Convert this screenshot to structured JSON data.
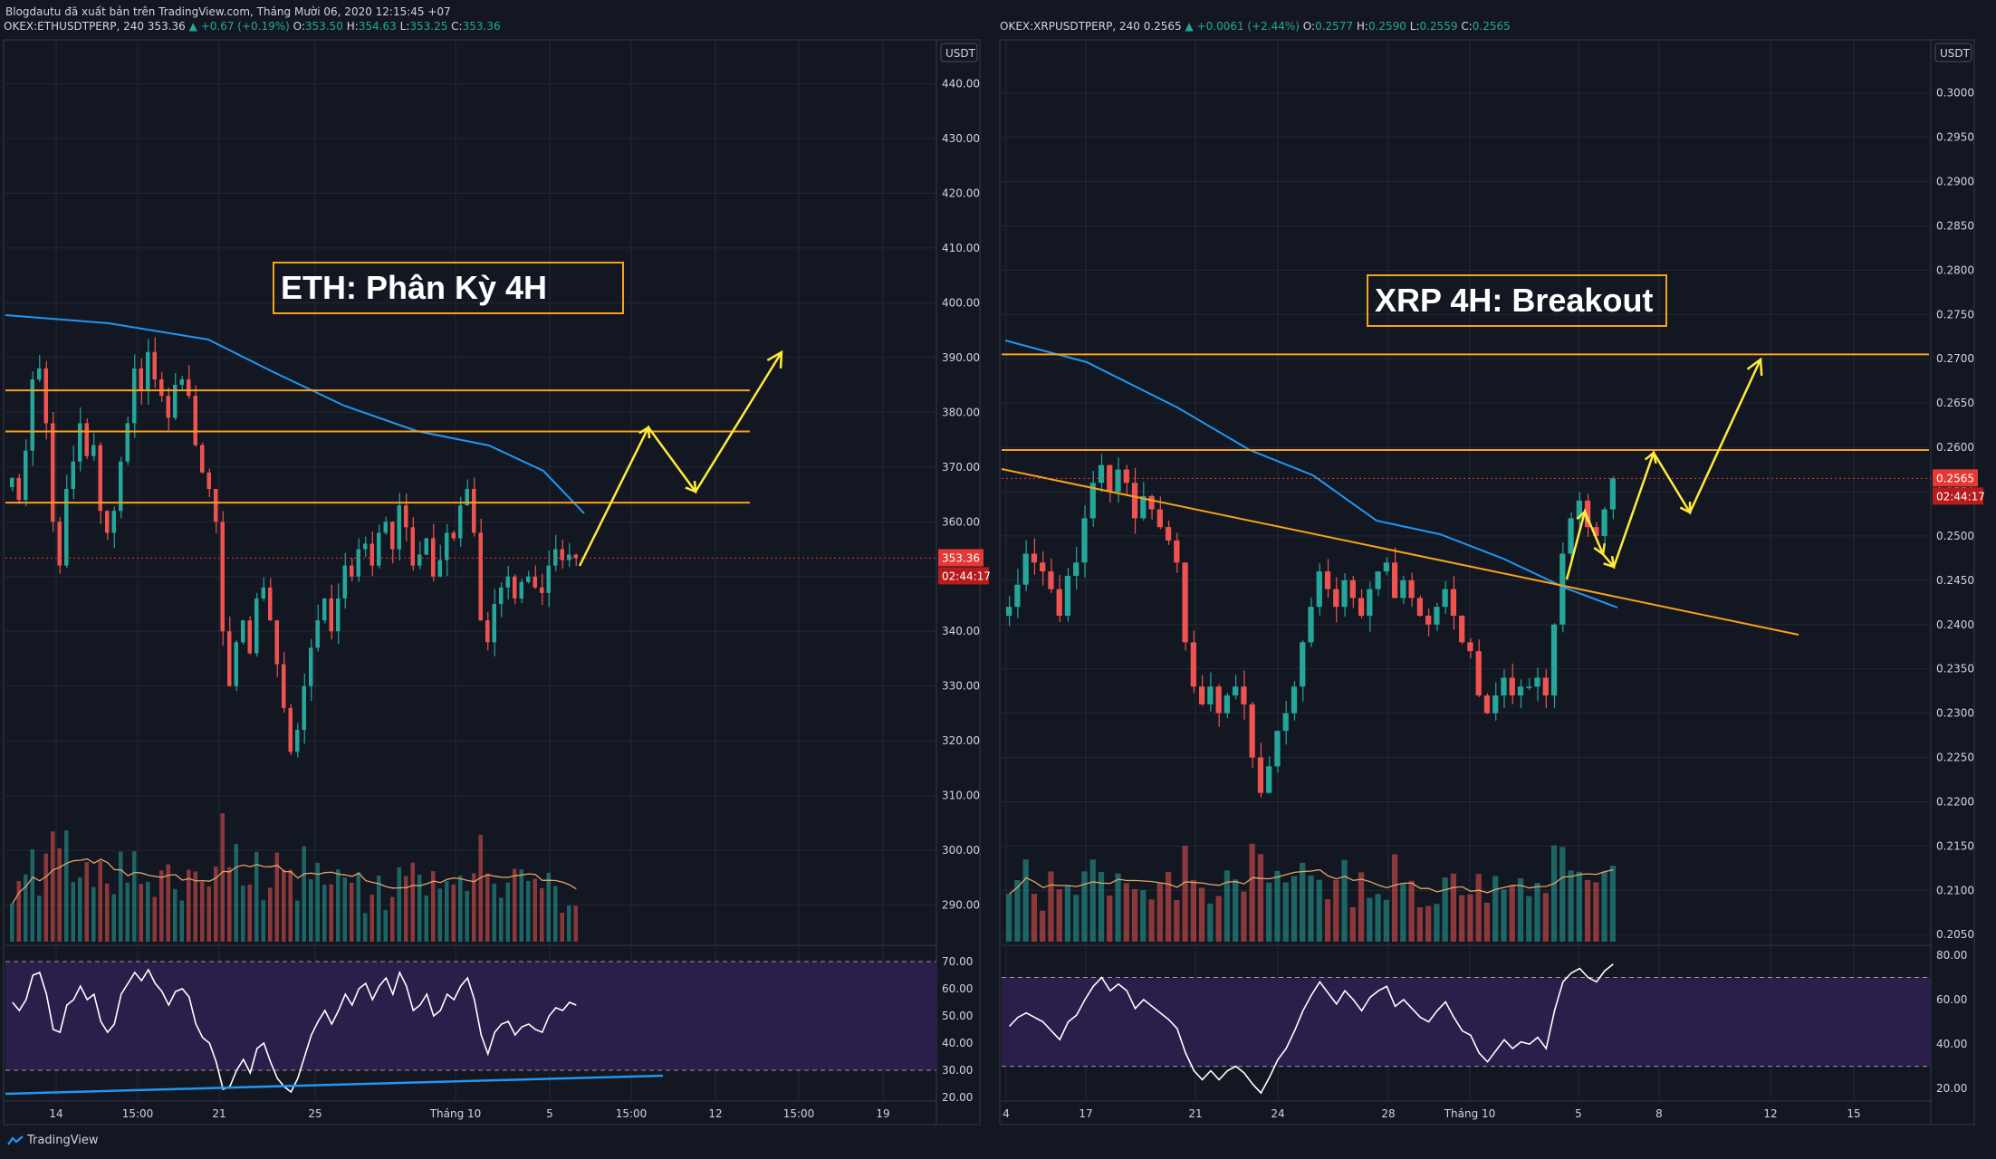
{
  "header": {
    "published": "Blogdautu đã xuất bản trên TradingView.com, Tháng Mười 06, 2020 12:15:45 +07"
  },
  "colors": {
    "background": "#131722",
    "grid": "#232834",
    "candle_up": "#26a69a",
    "candle_down": "#ef5350",
    "ema": "#2196f3",
    "levels": "#f7a21b",
    "projection": "#ffeb3b",
    "rsi_line": "#ffffff",
    "rsi_band": "#2a1e4a",
    "price_label": "#e53935"
  },
  "footer": {
    "brand": "TradingView"
  },
  "chart_data": [
    {
      "type": "candlestick",
      "symbol": "OKEX:ETHUSDTPERP, 240",
      "last": "353.36",
      "change": "▲ +0.67 (+0.19%)",
      "ohlc": {
        "o": "353.50",
        "h": "354.63",
        "l": "353.25",
        "c": "353.36"
      },
      "annotation": "ETH: Phân Kỳ 4H",
      "currency": "USDT",
      "ylim": [
        283,
        448
      ],
      "y_ticks": [
        "440.00",
        "430.00",
        "420.00",
        "410.00",
        "400.00",
        "390.00",
        "380.00",
        "370.00",
        "360.00",
        "350.00",
        "340.00",
        "330.00",
        "320.00",
        "310.00",
        "300.00",
        "290.00"
      ],
      "x_ticks": [
        "14",
        "15:00",
        "21",
        "25",
        "Tháng 10",
        "5",
        "15:00",
        "12",
        "15:00",
        "19"
      ],
      "price_label": "353.36",
      "countdown": "02:44:17",
      "horizontal_levels": [
        384.0,
        376.5,
        363.5
      ],
      "closes": [
        368,
        364,
        373,
        386,
        388,
        378,
        360,
        352,
        366,
        371,
        378,
        372,
        374,
        362,
        358,
        362,
        371,
        378,
        388,
        384,
        391,
        386,
        383,
        379,
        385,
        386,
        383,
        374,
        369,
        366,
        360,
        340,
        330,
        338,
        342,
        336,
        346,
        348,
        342,
        334,
        326,
        318,
        322,
        330,
        337,
        342,
        346,
        340,
        346,
        352,
        350,
        355,
        356,
        352,
        358,
        360,
        355,
        363,
        359,
        352,
        354,
        357,
        350,
        353,
        358,
        357,
        363,
        366,
        358,
        342,
        338,
        345,
        348,
        350,
        346,
        349,
        350,
        348,
        347,
        352,
        355,
        353,
        354,
        353.36
      ],
      "rsi": {
        "ylim": [
          20,
          74
        ],
        "y_ticks": [
          "70.00",
          "60.00",
          "50.00",
          "40.00",
          "30.00",
          "20.00"
        ],
        "bands": [
          70,
          30
        ],
        "values": [
          55,
          52,
          56,
          65,
          66,
          58,
          45,
          44,
          54,
          56,
          61,
          56,
          58,
          48,
          44,
          47,
          58,
          62,
          66,
          63,
          67,
          62,
          59,
          54,
          59,
          60,
          57,
          47,
          42,
          40,
          33,
          23,
          24,
          30,
          34,
          29,
          38,
          40,
          33,
          27,
          24,
          22,
          27,
          35,
          43,
          48,
          52,
          47,
          52,
          58,
          54,
          60,
          62,
          56,
          61,
          64,
          58,
          66,
          61,
          52,
          54,
          58,
          50,
          52,
          58,
          56,
          61,
          64,
          56,
          43,
          36,
          44,
          47,
          48,
          43,
          46,
          47,
          45,
          44,
          50,
          53,
          52,
          55,
          54
        ]
      }
    },
    {
      "type": "candlestick",
      "symbol": "OKEX:XRPUSDTPERP, 240",
      "last": "0.2565",
      "change": "▲ +0.0061 (+2.44%)",
      "ohlc": {
        "o": "0.2577",
        "h": "0.2590",
        "l": "0.2559",
        "c": "0.2565"
      },
      "annotation": "XRP 4H: Breakout",
      "currency": "USDT",
      "ylim": [
        0.204,
        0.306
      ],
      "y_ticks": [
        "0.3000",
        "0.2950",
        "0.2900",
        "0.2850",
        "0.2800",
        "0.2750",
        "0.2700",
        "0.2650",
        "0.2600",
        "0.2550",
        "0.2500",
        "0.2450",
        "0.2400",
        "0.2350",
        "0.2300",
        "0.2250",
        "0.2200",
        "0.2150",
        "0.2100",
        "0.2050"
      ],
      "x_ticks": [
        "4",
        "17",
        "21",
        "24",
        "28",
        "Tháng 10",
        "5",
        "8",
        "12",
        "15"
      ],
      "price_label": "0.2565",
      "countdown": "02:44:17",
      "horizontal_levels": [
        0.2705,
        0.2597
      ],
      "closes": [
        0.242,
        0.2445,
        0.248,
        0.247,
        0.246,
        0.244,
        0.241,
        0.2455,
        0.247,
        0.252,
        0.256,
        0.258,
        0.255,
        0.2575,
        0.256,
        0.252,
        0.2545,
        0.253,
        0.251,
        0.2495,
        0.247,
        0.238,
        0.233,
        0.231,
        0.233,
        0.23,
        0.232,
        0.233,
        0.231,
        0.225,
        0.221,
        0.224,
        0.228,
        0.23,
        0.233,
        0.238,
        0.242,
        0.246,
        0.244,
        0.242,
        0.245,
        0.243,
        0.241,
        0.244,
        0.246,
        0.247,
        0.243,
        0.245,
        0.243,
        0.241,
        0.24,
        0.242,
        0.244,
        0.241,
        0.238,
        0.237,
        0.232,
        0.23,
        0.232,
        0.234,
        0.232,
        0.233,
        0.233,
        0.234,
        0.232,
        0.24,
        0.248,
        0.252,
        0.254,
        0.251,
        0.25,
        0.253,
        0.2565
      ],
      "rsi": {
        "ylim": [
          16,
          82
        ],
        "y_ticks": [
          "80.00",
          "60.00",
          "40.00",
          "20.00"
        ],
        "bands": [
          70,
          30
        ],
        "values": [
          48,
          52,
          54,
          52,
          50,
          46,
          42,
          50,
          53,
          60,
          66,
          70,
          64,
          67,
          64,
          56,
          60,
          57,
          54,
          51,
          47,
          36,
          28,
          24,
          28,
          24,
          28,
          30,
          27,
          22,
          18,
          25,
          33,
          38,
          46,
          55,
          62,
          68,
          63,
          58,
          64,
          60,
          55,
          61,
          64,
          66,
          57,
          60,
          56,
          52,
          50,
          55,
          59,
          52,
          46,
          44,
          36,
          32,
          37,
          42,
          38,
          41,
          40,
          43,
          38,
          55,
          68,
          72,
          74,
          70,
          68,
          73,
          76
        ]
      }
    }
  ]
}
